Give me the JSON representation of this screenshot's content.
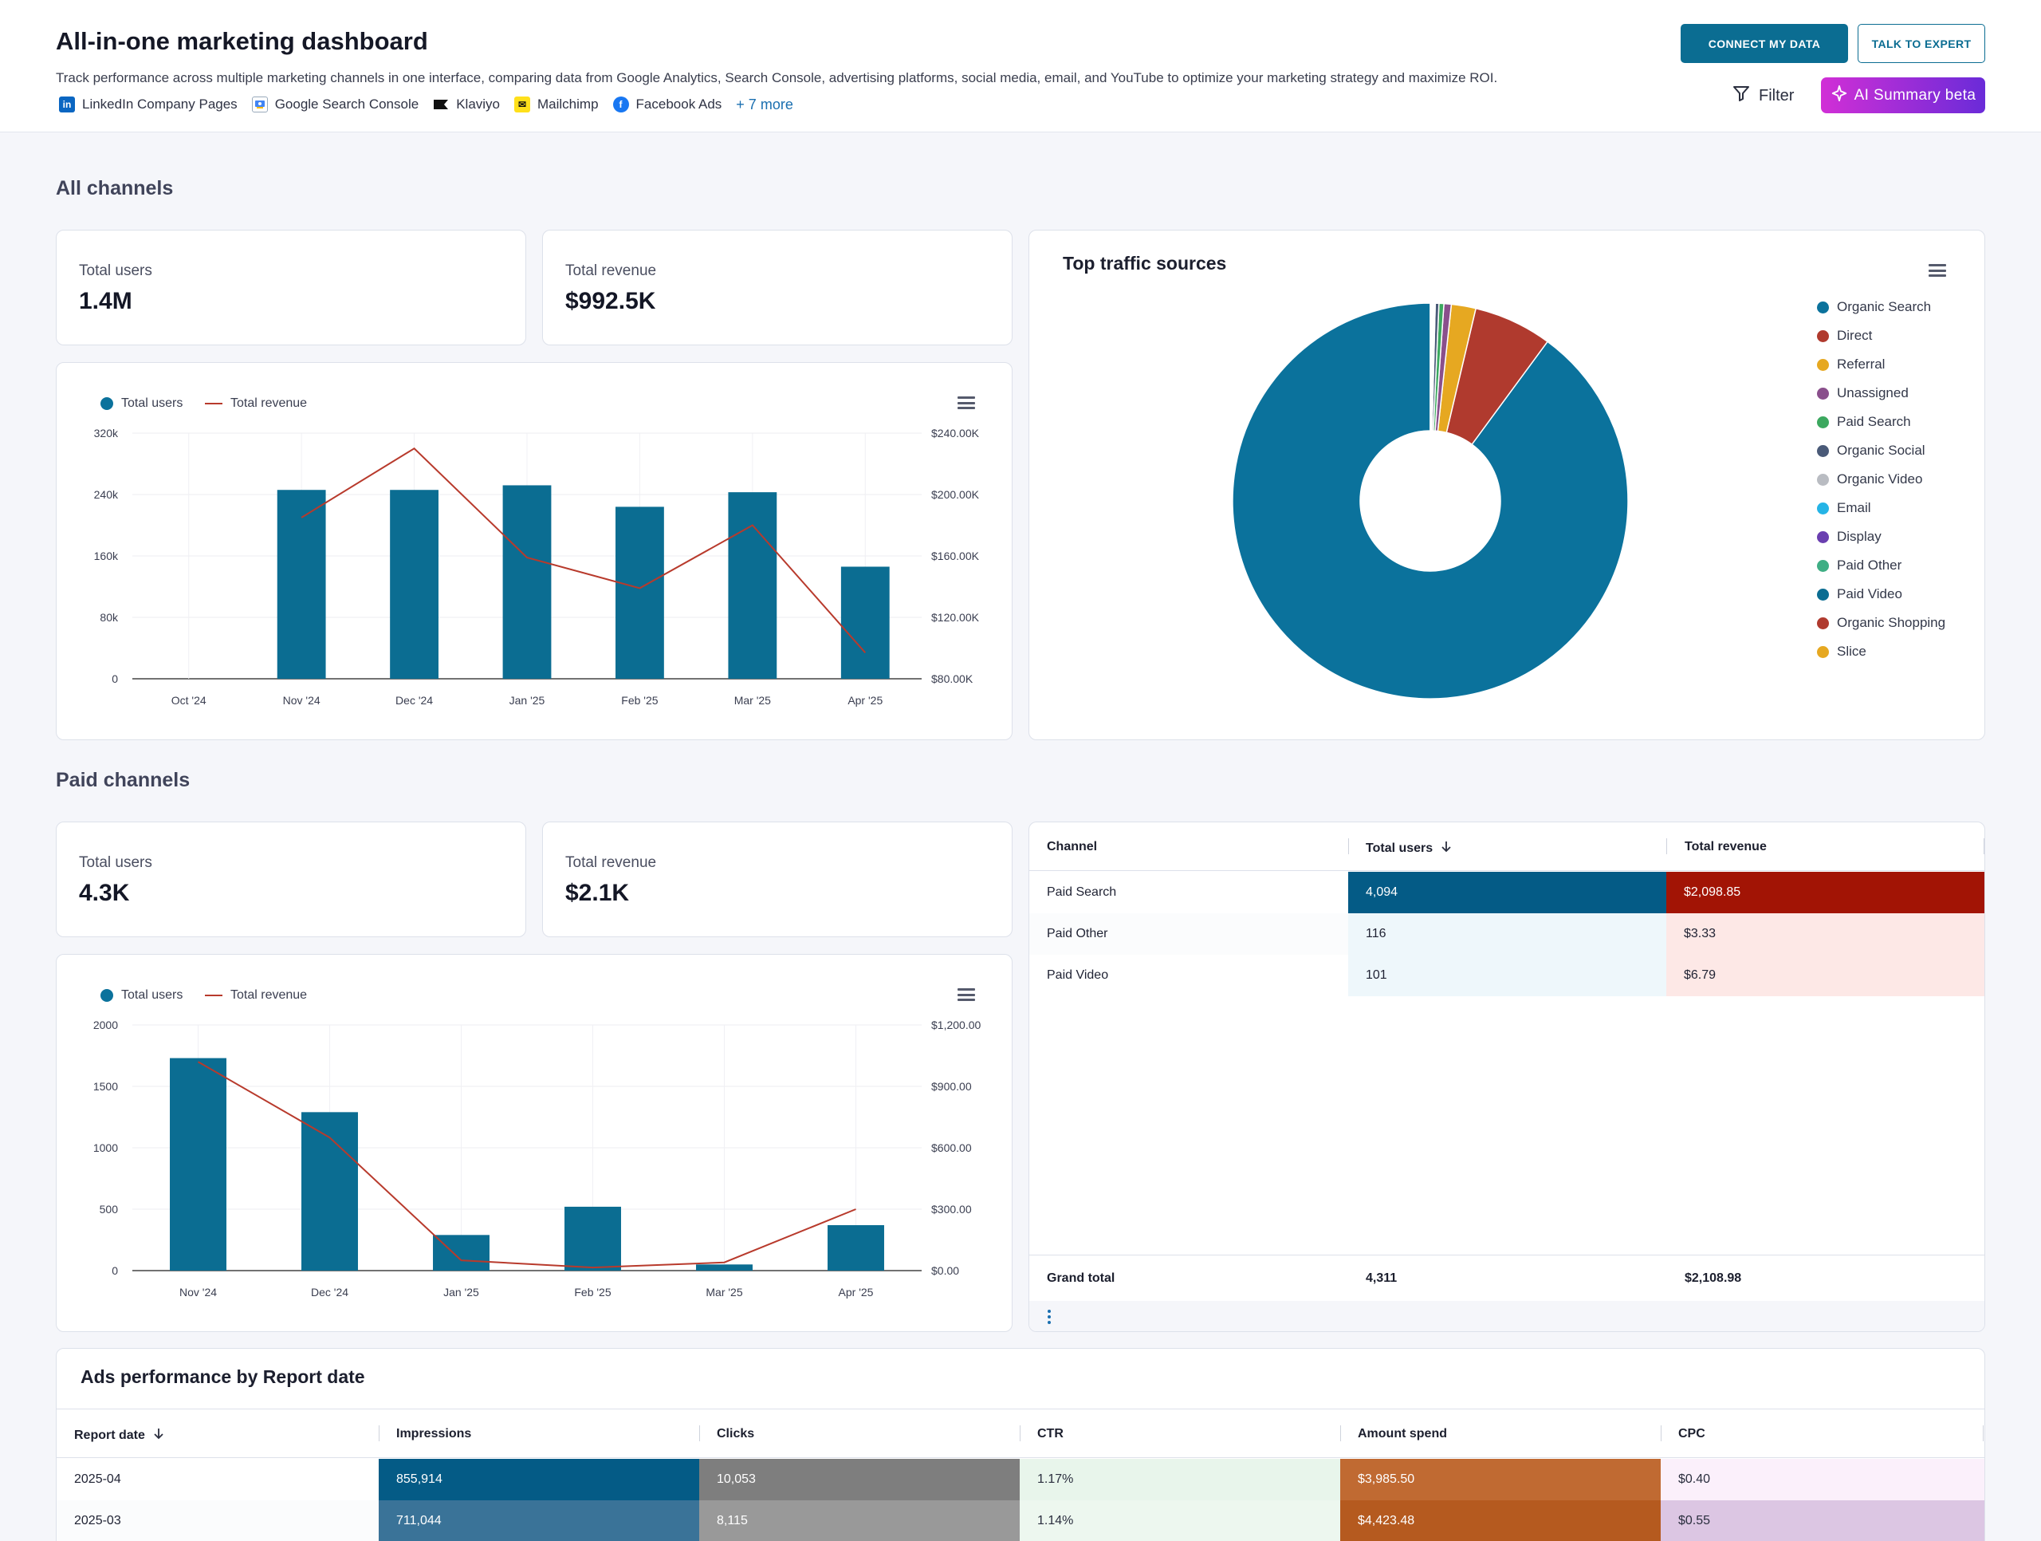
{
  "header": {
    "title": "All-in-one marketing dashboard",
    "subtitle": "Track performance across multiple marketing channels in one interface, comparing data from Google Analytics, Search Console, advertising platforms, social media, email, and YouTube to optimize your marketing strategy and maximize ROI.",
    "sources": [
      {
        "label": "LinkedIn Company Pages",
        "icon": "linkedin-icon"
      },
      {
        "label": "Google Search Console",
        "icon": "search-console-icon"
      },
      {
        "label": "Klaviyo",
        "icon": "klaviyo-icon"
      },
      {
        "label": "Mailchimp",
        "icon": "mailchimp-icon"
      },
      {
        "label": "Facebook Ads",
        "icon": "facebook-icon"
      }
    ],
    "more": "+ 7 more",
    "connect_label": "CONNECT MY DATA",
    "talk_label": "TALK TO EXPERT",
    "filter_label": "Filter",
    "ai_label": "AI Summary beta"
  },
  "colors": {
    "primary": "#0b6d92",
    "line": "#b83a2c"
  },
  "all_channels": {
    "section_title": "All channels",
    "kpi_users_label": "Total users",
    "kpi_users_value": "1.4M",
    "kpi_revenue_label": "Total revenue",
    "kpi_revenue_value": "$992.5K"
  },
  "paid_channels": {
    "section_title": "Paid channels",
    "kpi_users_label": "Total users",
    "kpi_users_value": "4.3K",
    "kpi_revenue_label": "Total revenue",
    "kpi_revenue_value": "$2.1K"
  },
  "chart_data": [
    {
      "id": "all",
      "type": "bar",
      "title": "",
      "legend": [
        "Total users",
        "Total revenue"
      ],
      "categories": [
        "Oct '24",
        "Nov '24",
        "Dec '24",
        "Jan '25",
        "Feb '25",
        "Mar '25",
        "Apr '25"
      ],
      "series": [
        {
          "name": "Total users",
          "kind": "bar",
          "axis": "left",
          "values": [
            0,
            246000,
            246000,
            252000,
            224000,
            243000,
            146000
          ]
        },
        {
          "name": "Total revenue",
          "kind": "line",
          "axis": "right",
          "values": [
            null,
            185000,
            230000,
            159000,
            139000,
            180000,
            97000
          ]
        }
      ],
      "ylim_left": [
        0,
        320000
      ],
      "yticks_left": [
        "0",
        "80k",
        "160k",
        "240k",
        "320k"
      ],
      "ylim_right": [
        80000,
        240000
      ],
      "yticks_right": [
        "$80.00K",
        "$120.00K",
        "$160.00K",
        "$200.00K",
        "$240.00K"
      ]
    },
    {
      "id": "paid",
      "type": "bar",
      "title": "",
      "legend": [
        "Total users",
        "Total revenue"
      ],
      "categories": [
        "Nov '24",
        "Dec '24",
        "Jan '25",
        "Feb '25",
        "Mar '25",
        "Apr '25"
      ],
      "series": [
        {
          "name": "Total users",
          "kind": "bar",
          "axis": "left",
          "values": [
            1730,
            1290,
            290,
            520,
            50,
            370
          ]
        },
        {
          "name": "Total revenue",
          "kind": "line",
          "axis": "right",
          "values": [
            1020,
            650,
            50,
            15,
            40,
            300
          ]
        }
      ],
      "ylim_left": [
        0,
        2000
      ],
      "yticks_left": [
        "0",
        "500",
        "1000",
        "1500",
        "2000"
      ],
      "ylim_right": [
        0,
        1200
      ],
      "yticks_right": [
        "$0.00",
        "$300.00",
        "$600.00",
        "$900.00",
        "$1,200.00"
      ]
    },
    {
      "id": "traffic",
      "type": "pie",
      "title": "Top traffic sources",
      "slices": [
        {
          "name": "Organic Search",
          "value": 89.9,
          "color": "#0b729c"
        },
        {
          "name": "Direct",
          "value": 6.4,
          "color": "#b03a2e"
        },
        {
          "name": "Referral",
          "value": 2.0,
          "color": "#e6a821"
        },
        {
          "name": "Unassigned",
          "value": 0.6,
          "color": "#8a4f8c"
        },
        {
          "name": "Paid Search",
          "value": 0.4,
          "color": "#3ca85f"
        },
        {
          "name": "Organic Social",
          "value": 0.3,
          "color": "#4a5a78"
        },
        {
          "name": "Organic Video",
          "value": 0.1,
          "color": "#b9bcc2"
        },
        {
          "name": "Email",
          "value": 0.1,
          "color": "#25b4e6"
        },
        {
          "name": "Display",
          "value": 0.05,
          "color": "#6a3fb0"
        },
        {
          "name": "Paid Other",
          "value": 0.05,
          "color": "#3fae84"
        },
        {
          "name": "Paid Video",
          "value": 0.05,
          "color": "#0b6d92"
        },
        {
          "name": "Organic Shopping",
          "value": 0.03,
          "color": "#b03a2e"
        },
        {
          "name": "Slice",
          "value": 0.02,
          "color": "#e6a821"
        }
      ]
    }
  ],
  "channel_table": {
    "headers": [
      "Channel",
      "Total users",
      "Total revenue"
    ],
    "rows": [
      {
        "channel": "Paid Search",
        "users": "4,094",
        "revenue": "$2,098.85"
      },
      {
        "channel": "Paid Other",
        "users": "116",
        "revenue": "$3.33"
      },
      {
        "channel": "Paid Video",
        "users": "101",
        "revenue": "$6.79"
      }
    ],
    "total_label": "Grand total",
    "total_users": "4,311",
    "total_revenue": "$2,108.98"
  },
  "ads_table": {
    "title": "Ads performance by Report date",
    "headers": [
      "Report date",
      "Impressions",
      "Clicks",
      "CTR",
      "Amount spend",
      "CPC"
    ],
    "rows": [
      [
        "2025-04",
        "855,914",
        "10,053",
        "1.17%",
        "$3,985.50",
        "$0.40"
      ],
      [
        "2025-03",
        "711,044",
        "8,115",
        "1.14%",
        "$4,423.48",
        "$0.55"
      ]
    ]
  }
}
